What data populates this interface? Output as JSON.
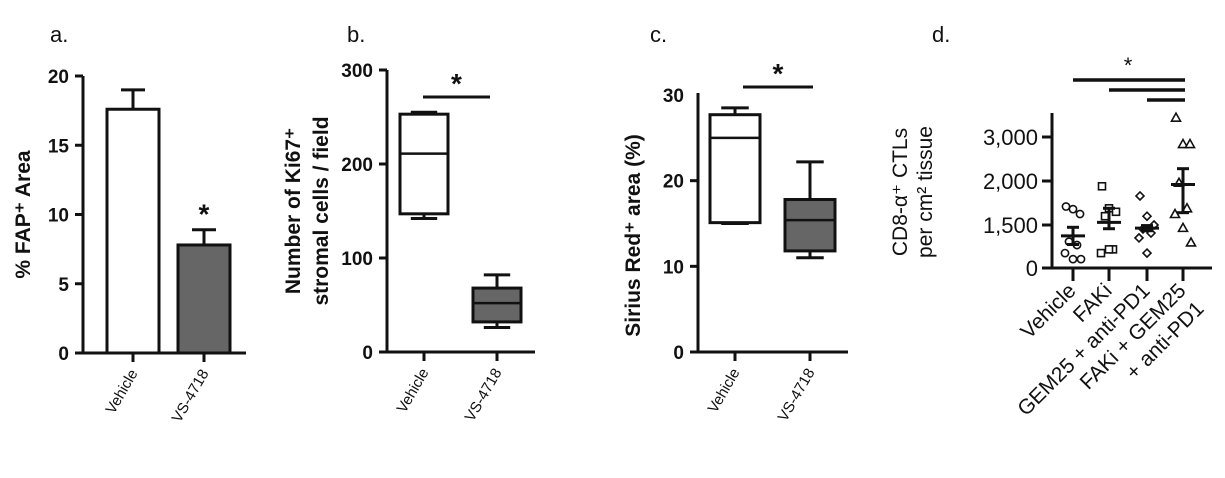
{
  "chart_data": [
    {
      "panel": "a.",
      "type": "bar",
      "categories": [
        "Vehicle",
        "VS-4718"
      ],
      "values": [
        17.6,
        7.8
      ],
      "error_upper": [
        19.0,
        8.9
      ],
      "fill_colors": [
        "#ffffff",
        "#666666"
      ],
      "ylabel": "% FAP⁺ Area",
      "yticks": [
        0,
        5,
        10,
        15,
        20
      ],
      "ylim": [
        0,
        20
      ],
      "annotations": [
        {
          "text": "*",
          "category": "VS-4718"
        }
      ]
    },
    {
      "panel": "b.",
      "type": "box",
      "categories": [
        "Vehicle",
        "VS-4718"
      ],
      "boxes": [
        {
          "min": 142,
          "q1": 147,
          "median": 211,
          "q3": 253,
          "max": 255
        },
        {
          "min": 26,
          "q1": 32,
          "median": 52,
          "q3": 68,
          "max": 82
        }
      ],
      "fill_colors": [
        "#ffffff",
        "#666666"
      ],
      "ylabel": [
        "Number of Ki67⁺",
        "stromal cells / field"
      ],
      "yticks": [
        0,
        100,
        200,
        300
      ],
      "ylim": [
        0,
        300
      ],
      "annotations": [
        {
          "text": "*",
          "between": [
            "Vehicle",
            "VS-4718"
          ]
        }
      ]
    },
    {
      "panel": "c.",
      "type": "box",
      "categories": [
        "Vehicle",
        "VS-4718"
      ],
      "boxes": [
        {
          "min": 15,
          "q1": 15.1,
          "median": 25,
          "q3": 27.7,
          "max": 28.5
        },
        {
          "min": 11,
          "q1": 11.8,
          "median": 15.4,
          "q3": 17.8,
          "max": 22.2
        }
      ],
      "fill_colors": [
        "#ffffff",
        "#666666"
      ],
      "ylabel": "Sirius Red⁺ area (%)",
      "yticks": [
        0,
        10,
        20,
        30
      ],
      "ylim": [
        0,
        30
      ],
      "annotations": [
        {
          "text": "*",
          "between": [
            "Vehicle",
            "VS-4718"
          ]
        }
      ]
    },
    {
      "panel": "d.",
      "type": "scatter",
      "categories": [
        "Vehicle",
        "FAKi",
        "GEM25 + anti-PD1",
        "FAKi + GEM25\n+ anti-PD1"
      ],
      "markers": [
        "circle",
        "square",
        "diamond",
        "triangle"
      ],
      "points": [
        [
          1710,
          1680,
          1625,
          920,
          800,
          520,
          310,
          310
        ],
        [
          1940,
          1690,
          1650,
          1600,
          650,
          520,
          650
        ],
        [
          1830,
          1600,
          1500,
          1360,
          1220,
          1050,
          520
        ],
        [
          3440,
          2840,
          2840,
          1980,
          1690,
          1625,
          1400,
          890
        ]
      ],
      "mean": [
        1120,
        1530,
        1390,
        1960
      ],
      "sem": [
        300,
        160,
        90,
        320
      ],
      "ylabel": [
        "CD8-α⁺ CTLs",
        "per cm² tissue"
      ],
      "yticks": [
        0,
        1500,
        2000,
        3000
      ],
      "ytick_labels": [
        "0",
        "1,500",
        "2,000",
        "3,000"
      ],
      "annotations": [
        {
          "text": "*",
          "comparisons": [
            "Vehicle vs FAKi + GEM25 + anti-PD1",
            "FAKi vs FAKi + GEM25 + anti-PD1",
            "GEM25 + anti-PD1 vs FAKi + GEM25 + anti-PD1"
          ]
        }
      ]
    }
  ]
}
